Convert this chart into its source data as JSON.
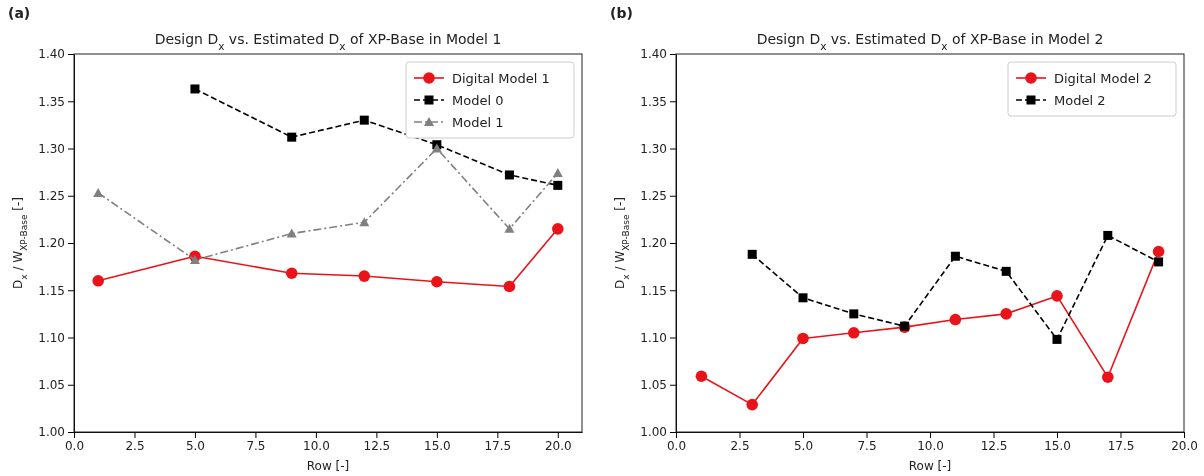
{
  "chart_data": [
    {
      "type": "line",
      "title": "Design D$_{x}$ vs. Estimated D$_{x}$ of XP-Base in Model 1",
      "xlabel": "Row [-]",
      "ylabel": "D$_{x}$ / W$_{XP-Base}$ [-]",
      "annotations": [
        "(a)"
      ],
      "xlim": [
        0,
        21
      ],
      "ylim": [
        1.0,
        1.4
      ],
      "xticks": [
        {
          "value": 0,
          "label": "0.0"
        },
        {
          "value": 2.5,
          "label": "2.5"
        },
        {
          "value": 5,
          "label": "5.0"
        },
        {
          "value": 7.5,
          "label": "7.5"
        },
        {
          "value": 10,
          "label": "10.0"
        },
        {
          "value": 12.5,
          "label": "12.5"
        },
        {
          "value": 15,
          "label": "15.0"
        },
        {
          "value": 17.5,
          "label": "17.5"
        },
        {
          "value": 20,
          "label": "20.0"
        }
      ],
      "yticks": [
        {
          "value": 1.0,
          "label": "1.00"
        },
        {
          "value": 1.05,
          "label": "1.05"
        },
        {
          "value": 1.1,
          "label": "1.10"
        },
        {
          "value": 1.15,
          "label": "1.15"
        },
        {
          "value": 1.2,
          "label": "1.20"
        },
        {
          "value": 1.25,
          "label": "1.25"
        },
        {
          "value": 1.3,
          "label": "1.30"
        },
        {
          "value": 1.35,
          "label": "1.35"
        },
        {
          "value": 1.4,
          "label": "1.40"
        }
      ],
      "grid": false,
      "legend": "top right",
      "series": [
        {
          "name": "Digital Model 1",
          "color": "#e8141a",
          "marker": "circle",
          "line_style": "solid",
          "x": [
            1,
            5,
            9,
            12,
            15,
            18,
            20
          ],
          "values": [
            1.16,
            1.186,
            1.168,
            1.165,
            1.159,
            1.154,
            1.215
          ]
        },
        {
          "name": "Model 0",
          "color": "#000000",
          "marker": "square",
          "line_style": "dashed",
          "x": [
            5,
            9,
            12,
            15,
            18,
            20
          ],
          "values": [
            1.363,
            1.312,
            1.33,
            1.304,
            1.272,
            1.261
          ]
        },
        {
          "name": "Model 1",
          "color": "#808080",
          "marker": "triangle",
          "line_style": "dashdot",
          "x": [
            1,
            5,
            9,
            12,
            15,
            18,
            20
          ],
          "values": [
            1.253,
            1.182,
            1.21,
            1.222,
            1.3,
            1.215,
            1.274
          ]
        }
      ]
    },
    {
      "type": "line",
      "title": "Design D$_{x}$ vs. Estimated D$_{x}$ of XP-Base in Model 2",
      "xlabel": "Row [-]",
      "ylabel": "D$_{x}$ / W$_{XP-Base}$ [-]",
      "annotations": [
        "(b)"
      ],
      "xlim": [
        0,
        20
      ],
      "ylim": [
        1.0,
        1.4
      ],
      "xticks": [
        {
          "value": 0,
          "label": "0.0"
        },
        {
          "value": 2.5,
          "label": "2.5"
        },
        {
          "value": 5,
          "label": "5.0"
        },
        {
          "value": 7.5,
          "label": "7.5"
        },
        {
          "value": 10,
          "label": "10.0"
        },
        {
          "value": 12.5,
          "label": "12.5"
        },
        {
          "value": 15,
          "label": "15.0"
        },
        {
          "value": 17.5,
          "label": "17.5"
        },
        {
          "value": 20,
          "label": "20.0"
        }
      ],
      "yticks": [
        {
          "value": 1.0,
          "label": "1.00"
        },
        {
          "value": 1.05,
          "label": "1.05"
        },
        {
          "value": 1.1,
          "label": "1.10"
        },
        {
          "value": 1.15,
          "label": "1.15"
        },
        {
          "value": 1.2,
          "label": "1.20"
        },
        {
          "value": 1.25,
          "label": "1.25"
        },
        {
          "value": 1.3,
          "label": "1.30"
        },
        {
          "value": 1.35,
          "label": "1.35"
        },
        {
          "value": 1.4,
          "label": "1.40"
        }
      ],
      "grid": false,
      "legend": "top right",
      "series": [
        {
          "name": "Digital Model 2",
          "color": "#e8141a",
          "marker": "circle",
          "line_style": "solid",
          "x": [
            1,
            3,
            5,
            7,
            9,
            11,
            13,
            15,
            17,
            19
          ],
          "values": [
            1.059,
            1.029,
            1.099,
            1.105,
            1.111,
            1.119,
            1.125,
            1.144,
            1.058,
            1.191
          ]
        },
        {
          "name": "Model 2",
          "color": "#000000",
          "marker": "square",
          "line_style": "dashed",
          "x": [
            3,
            5,
            7,
            9,
            11,
            13,
            15,
            17,
            19
          ],
          "values": [
            1.188,
            1.142,
            1.125,
            1.112,
            1.186,
            1.17,
            1.098,
            1.208,
            1.18
          ]
        }
      ]
    }
  ]
}
